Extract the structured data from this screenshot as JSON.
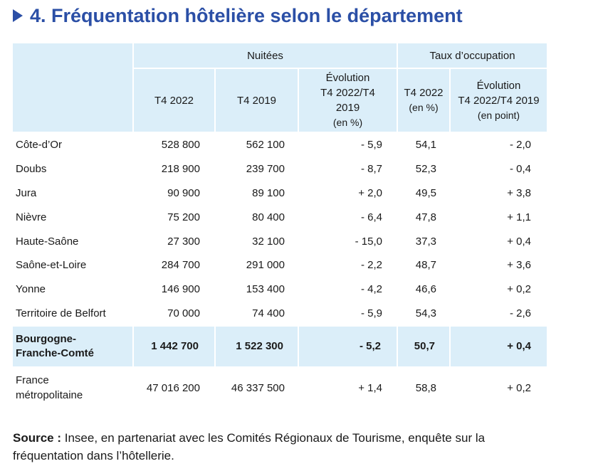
{
  "title": "4. Fréquentation hôtelière selon le département",
  "header": {
    "group_nuitees": "Nuitées",
    "group_taux": "Taux d’occupation",
    "col_t4_2022": "T4 2022",
    "col_t4_2019": "T4 2019",
    "col_evol_nuitees_1": "Évolution",
    "col_evol_nuitees_2": "T4 2022/T4",
    "col_evol_nuitees_3": "2019",
    "col_evol_nuitees_unit": "(en %)",
    "col_taux_1": "T4 2022",
    "col_taux_unit": "(en %)",
    "col_evol_taux_1": "Évolution",
    "col_evol_taux_2": "T4 2022/T4 2019",
    "col_evol_taux_unit": "(en point)"
  },
  "rows": [
    {
      "label": "Côte-d’Or",
      "t4_2022": "528 800",
      "t4_2019": "562 100",
      "evol": "- 5,9",
      "taux": "54,1",
      "evol_taux": "- 2,0"
    },
    {
      "label": "Doubs",
      "t4_2022": "218 900",
      "t4_2019": "239 700",
      "evol": "- 8,7",
      "taux": "52,3",
      "evol_taux": "- 0,4"
    },
    {
      "label": "Jura",
      "t4_2022": "90 900",
      "t4_2019": "89 100",
      "evol": "+ 2,0",
      "taux": "49,5",
      "evol_taux": "+ 3,8"
    },
    {
      "label": "Nièvre",
      "t4_2022": "75 200",
      "t4_2019": "80 400",
      "evol": "- 6,4",
      "taux": "47,8",
      "evol_taux": "+ 1,1"
    },
    {
      "label": "Haute-Saône",
      "t4_2022": "27 300",
      "t4_2019": "32 100",
      "evol": "- 15,0",
      "taux": "37,3",
      "evol_taux": "+ 0,4"
    },
    {
      "label": "Saône-et-Loire",
      "t4_2022": "284 700",
      "t4_2019": "291 000",
      "evol": "- 2,2",
      "taux": "48,7",
      "evol_taux": "+ 3,6"
    },
    {
      "label": "Yonne",
      "t4_2022": "146 900",
      "t4_2019": "153 400",
      "evol": "- 4,2",
      "taux": "46,6",
      "evol_taux": "+ 0,2"
    },
    {
      "label": "Territoire de Belfort",
      "t4_2022": "70 000",
      "t4_2019": "74 400",
      "evol": "- 5,9",
      "taux": "54,3",
      "evol_taux": "- 2,6"
    }
  ],
  "total": {
    "label_1": "Bourgogne-",
    "label_2": "Franche-Comté",
    "t4_2022": "1 442 700",
    "t4_2019": "1 522 300",
    "evol": "- 5,2",
    "taux": "50,7",
    "evol_taux": "+ 0,4"
  },
  "france": {
    "label_1": "France",
    "label_2": "métropolitaine",
    "t4_2022": "47 016 200",
    "t4_2019": "46 337 500",
    "evol": "+ 1,4",
    "taux": "58,8",
    "evol_taux": "+ 0,2"
  },
  "source": {
    "label": "Source :",
    "line_1": " Insee, en partenariat avec les Comités Régionaux de Tourisme, enquête sur la",
    "line_2": "fréquentation dans l’hôtellerie."
  },
  "colors": {
    "title": "#2b4fa6",
    "header_bg": "#dbeef9"
  }
}
